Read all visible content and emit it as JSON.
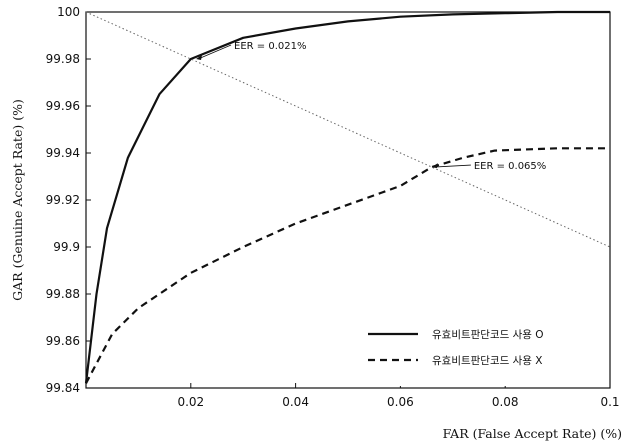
{
  "chart_data": {
    "type": "line",
    "xlabel": "FAR (False Accept Rate) (%)",
    "ylabel": "GAR (Genuine Accept Rate) (%)",
    "xlim": [
      0,
      0.1
    ],
    "ylim": [
      99.84,
      100
    ],
    "xticks": [
      0.02,
      0.04,
      0.06,
      0.08,
      0.1
    ],
    "xtick_labels": [
      "0.02",
      "0.04",
      "0.06",
      "0.08",
      "0.1"
    ],
    "yticks": [
      99.84,
      99.86,
      99.88,
      99.9,
      99.92,
      99.94,
      99.96,
      99.98,
      100
    ],
    "ytick_labels": [
      "99.84",
      "99.86",
      "99.88",
      "99.9",
      "99.92",
      "99.94",
      "99.96",
      "99.98",
      "100"
    ],
    "grid": false,
    "legend_position": "bottom-right",
    "series": [
      {
        "name": "유효비트판단코드 사용 O",
        "style": "solid",
        "points": [
          [
            0,
            99.842
          ],
          [
            0.002,
            99.88
          ],
          [
            0.004,
            99.908
          ],
          [
            0.008,
            99.938
          ],
          [
            0.014,
            99.965
          ],
          [
            0.02,
            99.98
          ],
          [
            0.03,
            99.989
          ],
          [
            0.04,
            99.993
          ],
          [
            0.05,
            99.996
          ],
          [
            0.06,
            99.998
          ],
          [
            0.07,
            99.999
          ],
          [
            0.08,
            99.9995
          ],
          [
            0.09,
            100
          ],
          [
            0.1,
            100
          ]
        ]
      },
      {
        "name": "유효비트판단코드 사용 X",
        "style": "dashed",
        "points": [
          [
            0,
            99.842
          ],
          [
            0.005,
            99.863
          ],
          [
            0.01,
            99.874
          ],
          [
            0.02,
            99.889
          ],
          [
            0.03,
            99.9
          ],
          [
            0.04,
            99.91
          ],
          [
            0.05,
            99.918
          ],
          [
            0.06,
            99.926
          ],
          [
            0.066,
            99.934
          ],
          [
            0.072,
            99.938
          ],
          [
            0.078,
            99.941
          ],
          [
            0.09,
            99.942
          ],
          [
            0.1,
            99.942
          ]
        ]
      },
      {
        "name": "",
        "style": "dotted",
        "points": [
          [
            0,
            100
          ],
          [
            0.1,
            99.9
          ]
        ]
      }
    ],
    "annotations": [
      {
        "text": "EER = 0.021%",
        "x": 0.021,
        "y": 99.98
      },
      {
        "text": "EER = 0.065%",
        "x": 0.066,
        "y": 99.934
      }
    ]
  }
}
